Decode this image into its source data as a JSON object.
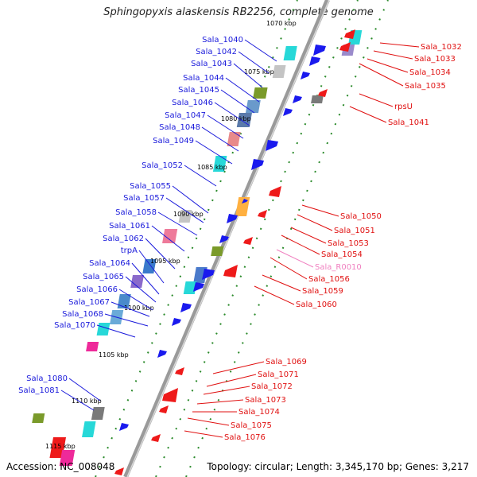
{
  "title": "Sphingopyxis alaskensis RB2256, complete genome",
  "footer": {
    "accession": "Accession: NC_008048",
    "topology": "Topology: circular; Length: 3,345,170 bp; Genes: 3,217"
  },
  "colors": {
    "forward_label": "#1a1adb",
    "reverse_label": "#e01010",
    "rna_label": "#f080c0",
    "backbone": "#8a8a8a",
    "tick": "#2a8a2a"
  },
  "ticks": [
    "1070 kbp",
    "1075 kbp",
    "1080 kbp",
    "1085 kbp",
    "1090 kbp",
    "1095 kbp",
    "1100 kbp",
    "1105 kbp",
    "1110 kbp",
    "1115 kbp"
  ],
  "forward_labels": [
    "Sala_1040",
    "Sala_1042",
    "Sala_1043",
    "Sala_1044",
    "Sala_1045",
    "Sala_1046",
    "Sala_1047",
    "Sala_1048",
    "Sala_1049",
    "Sala_1052",
    "Sala_1055",
    "Sala_1057",
    "Sala_1058",
    "Sala_1061",
    "Sala_1062",
    "trpA",
    "Sala_1064",
    "Sala_1065",
    "Sala_1066",
    "Sala_1067",
    "Sala_1068",
    "Sala_1070",
    "Sala_1080",
    "Sala_1081"
  ],
  "reverse_labels": [
    "Sala_1032",
    "Sala_1033",
    "Sala_1034",
    "Sala_1035",
    "rpsU",
    "Sala_1041",
    "Sala_1050",
    "Sala_1051",
    "Sala_1053",
    "Sala_1054",
    "Sala_R0010",
    "Sala_1056",
    "Sala_1059",
    "Sala_1060",
    "Sala_1069",
    "Sala_1071",
    "Sala_1072",
    "Sala_1073",
    "Sala_1074",
    "Sala_1075",
    "Sala_1076"
  ]
}
